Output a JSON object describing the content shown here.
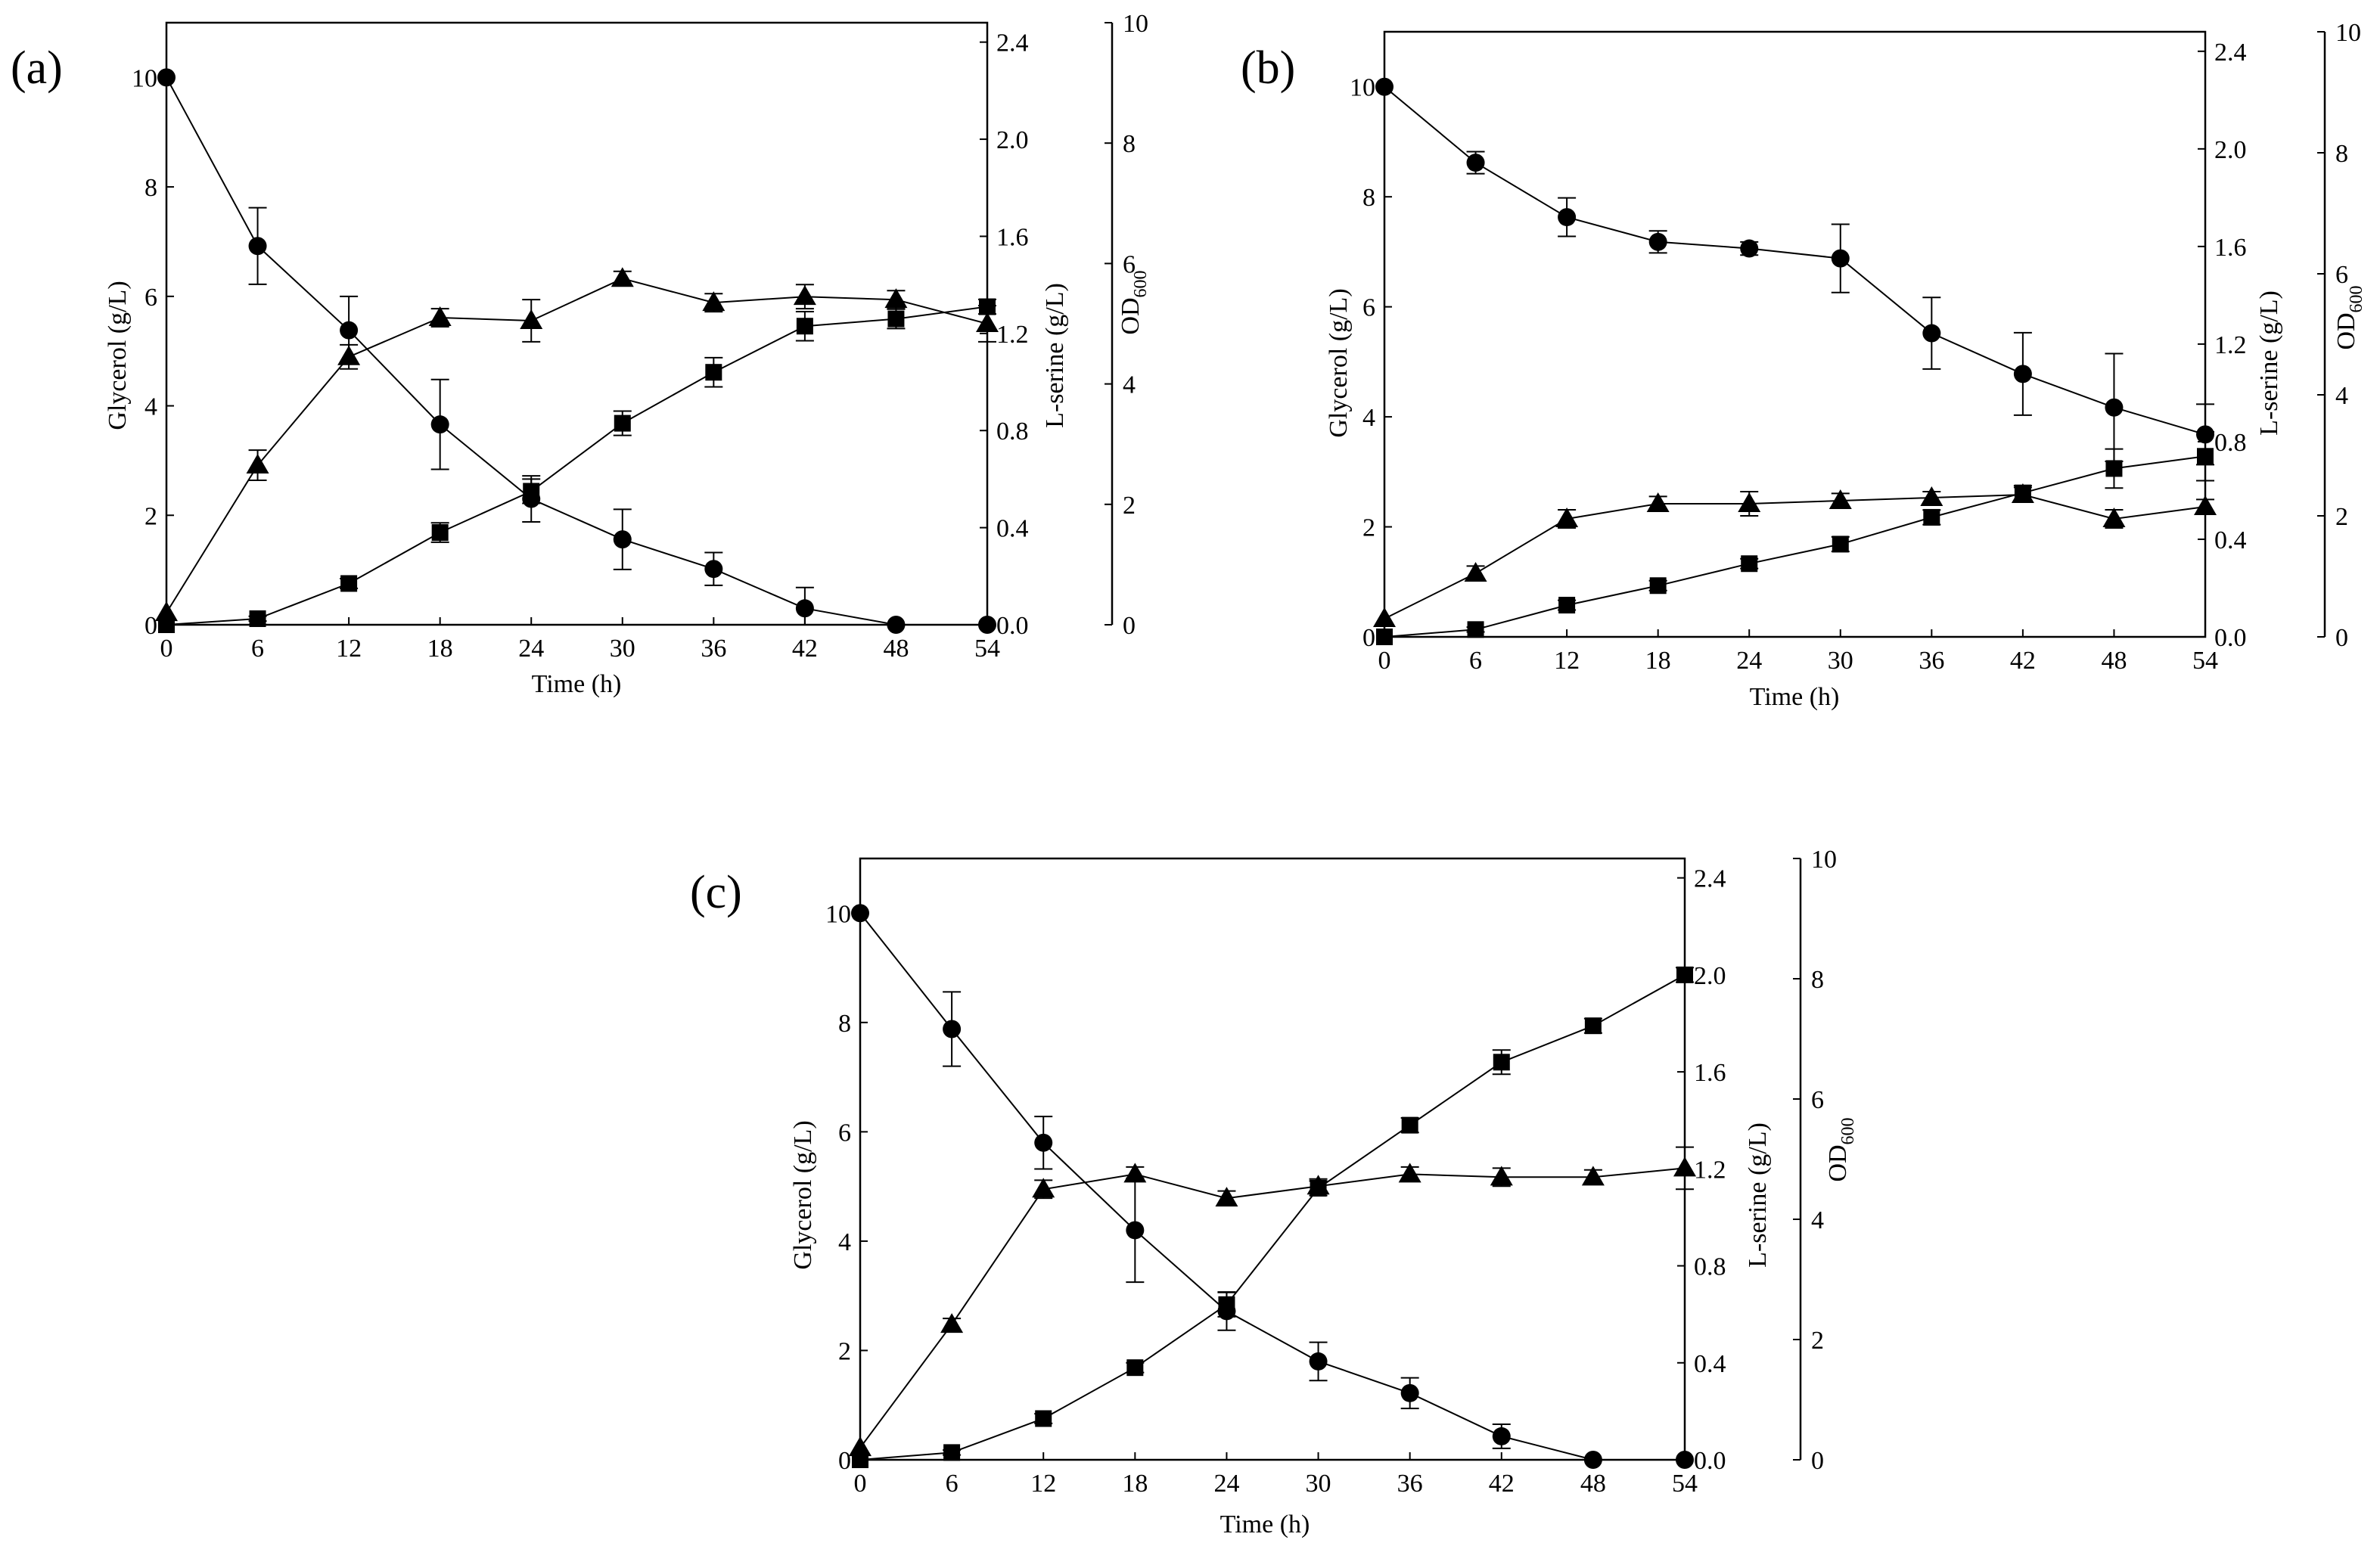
{
  "figure": {
    "colors": {
      "ink": "#000000",
      "background": "#ffffff"
    },
    "series_markers": {
      "Glycerol": "circle",
      "L-serine": "square",
      "OD600": "triangle"
    }
  },
  "chart_data": [
    {
      "panel": "(a)",
      "type": "line",
      "title": "",
      "xlabel": "Time (h)",
      "ylabel_left": "Glycerol (g/L)",
      "ylabel_right1": "L-serine (g/L)",
      "ylabel_right2_main": "OD",
      "ylabel_right2_sub": "600",
      "x": [
        0,
        6,
        12,
        18,
        24,
        30,
        36,
        42,
        48,
        54
      ],
      "xlim": [
        0,
        54
      ],
      "xticks": [
        "0",
        "6",
        "12",
        "18",
        "24",
        "30",
        "36",
        "42",
        "48",
        "54"
      ],
      "left_axis": {
        "lim": [
          0,
          11
        ],
        "ticks": [
          "0",
          "2",
          "4",
          "6",
          "8",
          "10"
        ]
      },
      "right1_axis": {
        "lim": [
          0,
          2.48
        ],
        "ticks": [
          "0.0",
          "0.4",
          "0.8",
          "1.2",
          "1.6",
          "2.0",
          "2.4"
        ]
      },
      "right2_axis": {
        "lim": [
          0,
          10
        ],
        "ticks": [
          "0",
          "2",
          "4",
          "6",
          "8",
          "10"
        ]
      },
      "series": [
        {
          "name": "Glycerol",
          "axis": "left",
          "marker": "circle",
          "values": [
            10.0,
            6.92,
            5.38,
            3.66,
            2.3,
            1.56,
            1.02,
            0.3,
            0.0,
            0.0
          ],
          "errors": [
            0.0,
            0.7,
            0.62,
            0.82,
            0.42,
            0.55,
            0.3,
            0.38,
            0.0,
            0.0
          ]
        },
        {
          "name": "L-serine",
          "axis": "right1",
          "marker": "square",
          "values": [
            0.0,
            0.025,
            0.17,
            0.38,
            0.55,
            0.83,
            1.04,
            1.23,
            1.26,
            1.31
          ],
          "errors": [
            0.0,
            0.01,
            0.02,
            0.04,
            0.05,
            0.05,
            0.06,
            0.06,
            0.04,
            0.03
          ]
        },
        {
          "name": "OD600",
          "axis": "right2",
          "marker": "triangle",
          "values": [
            0.2,
            2.65,
            4.45,
            5.1,
            5.05,
            5.75,
            5.35,
            5.45,
            5.4,
            5.0
          ],
          "errors": [
            0.0,
            0.25,
            0.2,
            0.15,
            0.35,
            0.12,
            0.15,
            0.2,
            0.15,
            0.3
          ]
        }
      ]
    },
    {
      "panel": "(b)",
      "type": "line",
      "title": "",
      "xlabel": "Time (h)",
      "ylabel_left": "Glycerol (g/L)",
      "ylabel_right1": "L-serine (g/L)",
      "ylabel_right2_main": "OD",
      "ylabel_right2_sub": "600",
      "x": [
        0,
        6,
        12,
        18,
        24,
        30,
        36,
        42,
        48,
        54
      ],
      "xlim": [
        0,
        54
      ],
      "xticks": [
        "0",
        "6",
        "12",
        "18",
        "24",
        "30",
        "36",
        "42",
        "48",
        "54"
      ],
      "left_axis": {
        "lim": [
          0,
          11
        ],
        "ticks": [
          "0",
          "2",
          "4",
          "6",
          "8",
          "10"
        ]
      },
      "right1_axis": {
        "lim": [
          0,
          2.48
        ],
        "ticks": [
          "0.0",
          "0.4",
          "0.8",
          "1.2",
          "1.6",
          "2.0",
          "2.4"
        ]
      },
      "right2_axis": {
        "lim": [
          0,
          10
        ],
        "ticks": [
          "0",
          "2",
          "4",
          "6",
          "8",
          "10"
        ]
      },
      "series": [
        {
          "name": "Glycerol",
          "axis": "left",
          "marker": "circle",
          "values": [
            10.0,
            8.62,
            7.63,
            7.18,
            7.06,
            6.88,
            5.52,
            4.78,
            4.17,
            3.68
          ],
          "errors": [
            0.0,
            0.2,
            0.35,
            0.2,
            0.12,
            0.62,
            0.65,
            0.75,
            0.98,
            0.55
          ]
        },
        {
          "name": "L-serine",
          "axis": "right1",
          "marker": "square",
          "values": [
            0.0,
            0.03,
            0.13,
            0.21,
            0.3,
            0.38,
            0.49,
            0.59,
            0.69,
            0.74
          ],
          "errors": [
            0.0,
            0.01,
            0.02,
            0.02,
            0.02,
            0.03,
            0.03,
            0.03,
            0.08,
            0.1
          ]
        },
        {
          "name": "OD600",
          "axis": "right2",
          "marker": "triangle",
          "values": [
            0.3,
            1.05,
            1.95,
            2.2,
            2.2,
            2.25,
            2.3,
            2.35,
            1.95,
            2.15
          ],
          "errors": [
            0.0,
            0.12,
            0.15,
            0.12,
            0.2,
            0.12,
            0.1,
            0.12,
            0.15,
            0.12
          ]
        }
      ]
    },
    {
      "panel": "(c)",
      "type": "line",
      "title": "",
      "xlabel": "Time (h)",
      "ylabel_left": "Glycerol (g/L)",
      "ylabel_right1": "L-serine (g/L)",
      "ylabel_right2_main": "OD",
      "ylabel_right2_sub": "600",
      "x": [
        0,
        6,
        12,
        18,
        24,
        30,
        36,
        42,
        48,
        54
      ],
      "xlim": [
        0,
        54
      ],
      "xticks": [
        "0",
        "6",
        "12",
        "18",
        "24",
        "30",
        "36",
        "42",
        "48",
        "54"
      ],
      "left_axis": {
        "lim": [
          0,
          11
        ],
        "ticks": [
          "0",
          "2",
          "4",
          "6",
          "8",
          "10"
        ]
      },
      "right1_axis": {
        "lim": [
          0,
          2.48
        ],
        "ticks": [
          "0.0",
          "0.4",
          "0.8",
          "1.2",
          "1.6",
          "2.0",
          "2.4"
        ]
      },
      "right2_axis": {
        "lim": [
          0,
          10
        ],
        "ticks": [
          "0",
          "2",
          "4",
          "6",
          "8",
          "10"
        ]
      },
      "series": [
        {
          "name": "Glycerol",
          "axis": "left",
          "marker": "circle",
          "values": [
            10.0,
            7.88,
            5.8,
            4.2,
            2.72,
            1.8,
            1.22,
            0.43,
            0.0,
            0.0
          ],
          "errors": [
            0.0,
            0.68,
            0.48,
            0.95,
            0.35,
            0.35,
            0.28,
            0.22,
            0.0,
            0.0
          ]
        },
        {
          "name": "L-serine",
          "axis": "right1",
          "marker": "square",
          "values": [
            0.0,
            0.03,
            0.17,
            0.38,
            0.64,
            1.12,
            1.38,
            1.64,
            1.79,
            2.0
          ],
          "errors": [
            0.0,
            0.01,
            0.02,
            0.02,
            0.05,
            0.03,
            0.03,
            0.05,
            0.03,
            0.03
          ]
        },
        {
          "name": "OD600",
          "axis": "right2",
          "marker": "triangle",
          "values": [
            0.2,
            2.25,
            4.5,
            4.75,
            4.35,
            4.55,
            4.75,
            4.7,
            4.7,
            4.85
          ],
          "errors": [
            0.0,
            0.1,
            0.15,
            0.12,
            0.12,
            0.12,
            0.12,
            0.15,
            0.12,
            0.35
          ]
        }
      ]
    }
  ]
}
